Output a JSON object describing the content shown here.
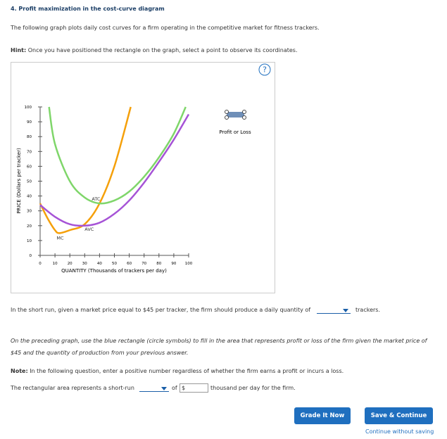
{
  "header": {
    "title": "4. Profit maximization in the cost-curve diagram",
    "intro": "The following graph plots daily cost curves for a firm operating in the competitive market for fitness trackers.",
    "hint_label": "Hint:",
    "hint": "Once you have positioned the rectangle on the graph, select a point to observe its coordinates."
  },
  "chart_data": {
    "type": "line",
    "help": "?",
    "xlabel": "QUANTITY (Thousands of trackers per day)",
    "ylabel": "PRICE (Dollars per tracker)",
    "xlim": [
      0,
      100
    ],
    "ylim": [
      0,
      100
    ],
    "xticks": [
      0,
      10,
      20,
      30,
      40,
      50,
      60,
      70,
      80,
      90,
      100
    ],
    "yticks": [
      0,
      10,
      20,
      30,
      40,
      50,
      60,
      70,
      80,
      90,
      100
    ],
    "legend": "Profit or Loss",
    "series": [
      {
        "name": "MC",
        "color": "#f5a00a",
        "x": [
          0,
          5,
          10,
          13,
          20,
          30,
          40,
          50,
          61
        ],
        "values": [
          35,
          25,
          17,
          15,
          17,
          21,
          35,
          60,
          100
        ]
      },
      {
        "name": "ATC",
        "color": "#7fd66a",
        "x": [
          6,
          10,
          20,
          30,
          40,
          50,
          60,
          70,
          80,
          90,
          98
        ],
        "values": [
          100,
          75,
          50,
          39,
          35,
          37,
          43,
          53,
          66,
          82,
          100
        ]
      },
      {
        "name": "AVC",
        "color": "#a653d6",
        "x": [
          0,
          10,
          20,
          30,
          40,
          50,
          60,
          70,
          80,
          90,
          100
        ],
        "values": [
          34,
          26,
          21,
          20,
          22,
          28,
          37,
          49,
          63,
          78,
          95
        ]
      }
    ]
  },
  "questions": {
    "q1_before": "In the short run, given a market price equal to $45 per tracker, the firm should produce a daily quantity of",
    "q1_after": "trackers.",
    "instruction": "On the preceding graph, use the blue rectangle (circle symbols) to fill in the area that represents profit or loss of the firm given the market price of $45 and the quantity of production from your previous answer.",
    "note_label": "Note:",
    "note": "In the following question, enter a positive number regardless of whether the firm earns a profit or incurs a loss.",
    "q2_before": "The rectangular area represents a short-run",
    "q2_of": "of",
    "q2_currency": "$",
    "q2_after": "thousand per day for the firm."
  },
  "buttons": {
    "grade": "Grade It Now",
    "save": "Save & Continue",
    "skip": "Continue without saving"
  }
}
